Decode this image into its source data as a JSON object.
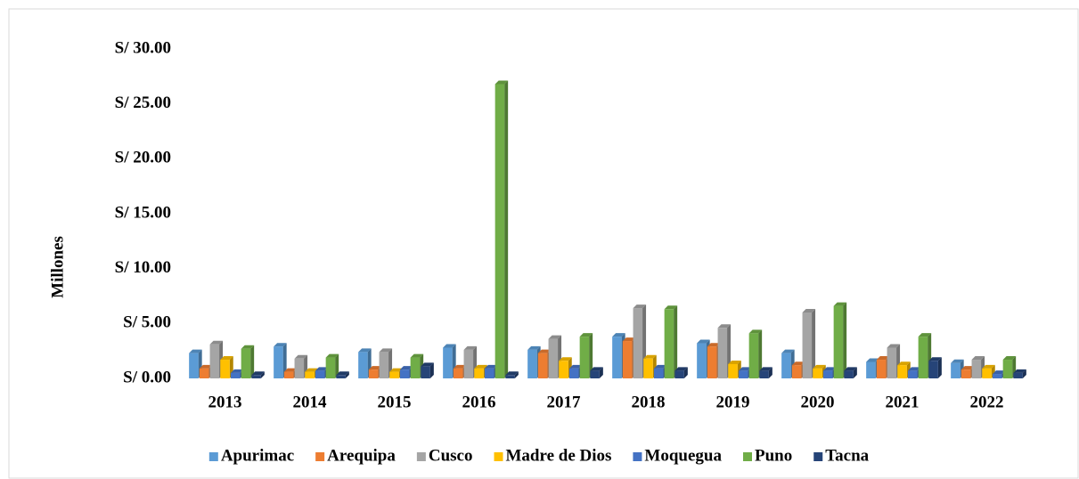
{
  "chart_data": {
    "type": "bar3d",
    "y_axis_label": "Millones",
    "categories": [
      "2013",
      "2014",
      "2015",
      "2016",
      "2017",
      "2018",
      "2019",
      "2020",
      "2021",
      "2022"
    ],
    "series": [
      {
        "name": "Apurimac",
        "color": "#5b9bd5",
        "values": [
          2.3,
          2.9,
          2.4,
          2.8,
          2.6,
          3.8,
          3.2,
          2.3,
          1.5,
          1.4
        ]
      },
      {
        "name": "Arequipa",
        "color": "#ed7d31",
        "values": [
          0.9,
          0.6,
          0.8,
          0.9,
          2.3,
          3.4,
          2.9,
          1.2,
          1.7,
          0.8
        ]
      },
      {
        "name": "Cusco",
        "color": "#a5a5a5",
        "values": [
          3.1,
          1.8,
          2.4,
          2.6,
          3.6,
          6.4,
          4.6,
          6.0,
          2.8,
          1.7
        ]
      },
      {
        "name": "Madre de Dios",
        "color": "#ffc000",
        "values": [
          1.7,
          0.6,
          0.6,
          0.9,
          1.6,
          1.8,
          1.3,
          0.9,
          1.2,
          0.9
        ]
      },
      {
        "name": "Moquegua",
        "color": "#4472c4",
        "values": [
          0.5,
          0.7,
          0.8,
          0.9,
          0.9,
          0.9,
          0.7,
          0.7,
          0.7,
          0.4
        ]
      },
      {
        "name": "Puno",
        "color": "#70ad47",
        "values": [
          2.7,
          1.9,
          1.9,
          26.8,
          3.8,
          6.3,
          4.1,
          6.6,
          3.8,
          1.7
        ]
      },
      {
        "name": "Tacna",
        "color": "#264478",
        "values": [
          0.3,
          0.3,
          1.1,
          0.3,
          0.7,
          0.7,
          0.7,
          0.7,
          1.6,
          0.5
        ]
      }
    ],
    "ylim": [
      0,
      30
    ],
    "yticks": [
      {
        "value": 0,
        "label": "S/ 0.00"
      },
      {
        "value": 5,
        "label": "S/ 5.00"
      },
      {
        "value": 10,
        "label": "S/ 10.00"
      },
      {
        "value": 15,
        "label": "S/ 15.00"
      },
      {
        "value": 20,
        "label": "S/ 20.00"
      },
      {
        "value": 25,
        "label": "S/ 25.00"
      },
      {
        "value": 30,
        "label": "S/ 30.00"
      }
    ],
    "legend": "bottom"
  }
}
